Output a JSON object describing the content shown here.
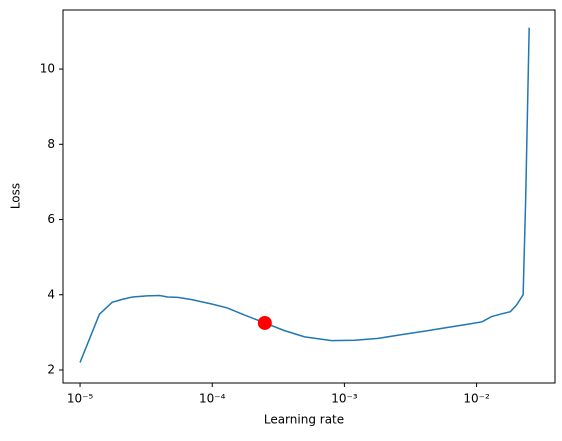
{
  "chart_data": {
    "type": "line",
    "xlabel": "Learning rate",
    "ylabel": "Loss",
    "xscale": "log",
    "x": [
      1e-05,
      1.4e-05,
      1.75e-05,
      2.1e-05,
      2.5e-05,
      3.2e-05,
      4e-05,
      4.6e-05,
      5.5e-05,
      7e-05,
      0.0001,
      0.00013,
      0.00017,
      0.00025,
      0.00035,
      0.0005,
      0.0008,
      0.0012,
      0.0018,
      0.0026,
      0.004,
      0.006,
      0.008,
      0.011,
      0.013,
      0.015,
      0.018,
      0.02,
      0.0225,
      0.0235,
      0.025
    ],
    "series": [
      {
        "color": "#1f77b4",
        "values": [
          2.2,
          3.48,
          3.8,
          3.88,
          3.94,
          3.97,
          3.98,
          3.94,
          3.93,
          3.87,
          3.75,
          3.65,
          3.48,
          3.25,
          3.05,
          2.88,
          2.78,
          2.79,
          2.84,
          2.93,
          3.03,
          3.13,
          3.2,
          3.28,
          3.42,
          3.48,
          3.55,
          3.72,
          4.0,
          6.5,
          11.1
        ]
      }
    ],
    "marker": {
      "x": 0.00025,
      "y": 3.25,
      "color": "red"
    },
    "xlim": [
      7.43e-06,
      0.0392
    ],
    "ylim": [
      1.654,
      11.57
    ],
    "xticks": [
      {
        "value": 1e-05,
        "label": "10⁻⁵"
      },
      {
        "value": 0.0001,
        "label": "10⁻⁴"
      },
      {
        "value": 0.001,
        "label": "10⁻³"
      },
      {
        "value": 0.01,
        "label": "10⁻²"
      }
    ],
    "yticks": [
      2,
      4,
      6,
      8,
      10
    ]
  }
}
